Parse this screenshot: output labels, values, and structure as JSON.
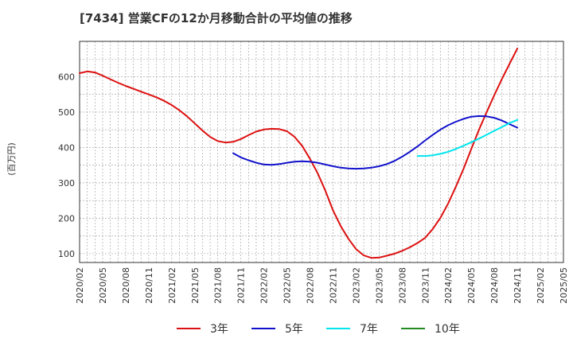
{
  "chart_data": {
    "type": "line",
    "title": "[7434]  営業CFの12か月移動合計の平均値の推移",
    "ylabel": "(百万円)",
    "xlabel": "",
    "ylim": [
      75,
      700
    ],
    "yticks": [
      100,
      200,
      300,
      400,
      500,
      600
    ],
    "x_ticks": [
      "2020/02",
      "2020/05",
      "2020/08",
      "2020/11",
      "2021/02",
      "2021/05",
      "2021/08",
      "2021/11",
      "2022/02",
      "2022/05",
      "2022/08",
      "2022/11",
      "2023/02",
      "2023/05",
      "2023/08",
      "2023/11",
      "2024/02",
      "2024/05",
      "2024/08",
      "2024/11",
      "2025/02",
      "2025/05"
    ],
    "x_range": [
      "2020/02",
      "2025/05"
    ],
    "grid": true,
    "legend_position": "bottom",
    "series": [
      {
        "name": "3年",
        "color": "#dd1111",
        "points": [
          [
            "2020/02",
            610
          ],
          [
            "2020/03",
            615
          ],
          [
            "2020/04",
            612
          ],
          [
            "2020/05",
            603
          ],
          [
            "2020/06",
            593
          ],
          [
            "2020/07",
            583
          ],
          [
            "2020/08",
            574
          ],
          [
            "2020/09",
            566
          ],
          [
            "2020/10",
            558
          ],
          [
            "2020/11",
            550
          ],
          [
            "2020/12",
            542
          ],
          [
            "2021/01",
            532
          ],
          [
            "2021/02",
            520
          ],
          [
            "2021/03",
            505
          ],
          [
            "2021/04",
            488
          ],
          [
            "2021/05",
            468
          ],
          [
            "2021/06",
            448
          ],
          [
            "2021/07",
            430
          ],
          [
            "2021/08",
            418
          ],
          [
            "2021/09",
            414
          ],
          [
            "2021/10",
            416
          ],
          [
            "2021/11",
            424
          ],
          [
            "2021/12",
            435
          ],
          [
            "2022/01",
            445
          ],
          [
            "2022/02",
            451
          ],
          [
            "2022/03",
            453
          ],
          [
            "2022/04",
            452
          ],
          [
            "2022/05",
            446
          ],
          [
            "2022/06",
            430
          ],
          [
            "2022/07",
            404
          ],
          [
            "2022/08",
            368
          ],
          [
            "2022/09",
            327
          ],
          [
            "2022/10",
            278
          ],
          [
            "2022/11",
            222
          ],
          [
            "2022/12",
            178
          ],
          [
            "2023/01",
            142
          ],
          [
            "2023/02",
            113
          ],
          [
            "2023/03",
            95
          ],
          [
            "2023/04",
            88
          ],
          [
            "2023/05",
            89
          ],
          [
            "2023/06",
            94
          ],
          [
            "2023/07",
            100
          ],
          [
            "2023/08",
            108
          ],
          [
            "2023/09",
            118
          ],
          [
            "2023/10",
            130
          ],
          [
            "2023/11",
            145
          ],
          [
            "2023/12",
            170
          ],
          [
            "2024/01",
            202
          ],
          [
            "2024/02",
            242
          ],
          [
            "2024/03",
            290
          ],
          [
            "2024/04",
            340
          ],
          [
            "2024/05",
            396
          ],
          [
            "2024/06",
            450
          ],
          [
            "2024/07",
            500
          ],
          [
            "2024/08",
            548
          ],
          [
            "2024/09",
            594
          ],
          [
            "2024/10",
            637
          ],
          [
            "2024/11",
            680
          ]
        ]
      },
      {
        "name": "5年",
        "color": "#1111cc",
        "points": [
          [
            "2021/10",
            384
          ],
          [
            "2021/11",
            372
          ],
          [
            "2021/12",
            364
          ],
          [
            "2022/01",
            357
          ],
          [
            "2022/02",
            352
          ],
          [
            "2022/03",
            351
          ],
          [
            "2022/04",
            353
          ],
          [
            "2022/05",
            357
          ],
          [
            "2022/06",
            360
          ],
          [
            "2022/07",
            361
          ],
          [
            "2022/08",
            360
          ],
          [
            "2022/09",
            357
          ],
          [
            "2022/10",
            352
          ],
          [
            "2022/11",
            347
          ],
          [
            "2022/12",
            343
          ],
          [
            "2023/01",
            341
          ],
          [
            "2023/02",
            340
          ],
          [
            "2023/03",
            341
          ],
          [
            "2023/04",
            343
          ],
          [
            "2023/05",
            347
          ],
          [
            "2023/06",
            353
          ],
          [
            "2023/07",
            362
          ],
          [
            "2023/08",
            374
          ],
          [
            "2023/09",
            388
          ],
          [
            "2023/10",
            403
          ],
          [
            "2023/11",
            420
          ],
          [
            "2023/12",
            436
          ],
          [
            "2024/01",
            451
          ],
          [
            "2024/02",
            463
          ],
          [
            "2024/03",
            473
          ],
          [
            "2024/04",
            481
          ],
          [
            "2024/05",
            487
          ],
          [
            "2024/06",
            489
          ],
          [
            "2024/07",
            488
          ],
          [
            "2024/08",
            484
          ],
          [
            "2024/09",
            476
          ],
          [
            "2024/10",
            466
          ],
          [
            "2024/11",
            456
          ]
        ]
      },
      {
        "name": "7年",
        "color": "#00e5ee",
        "points": [
          [
            "2023/10",
            376
          ],
          [
            "2023/11",
            376
          ],
          [
            "2023/12",
            378
          ],
          [
            "2024/01",
            382
          ],
          [
            "2024/02",
            388
          ],
          [
            "2024/03",
            396
          ],
          [
            "2024/04",
            405
          ],
          [
            "2024/05",
            415
          ],
          [
            "2024/06",
            425
          ],
          [
            "2024/07",
            436
          ],
          [
            "2024/08",
            447
          ],
          [
            "2024/09",
            458
          ],
          [
            "2024/10",
            469
          ],
          [
            "2024/11",
            478
          ]
        ]
      },
      {
        "name": "10年",
        "color": "#228b22",
        "points": []
      }
    ]
  }
}
